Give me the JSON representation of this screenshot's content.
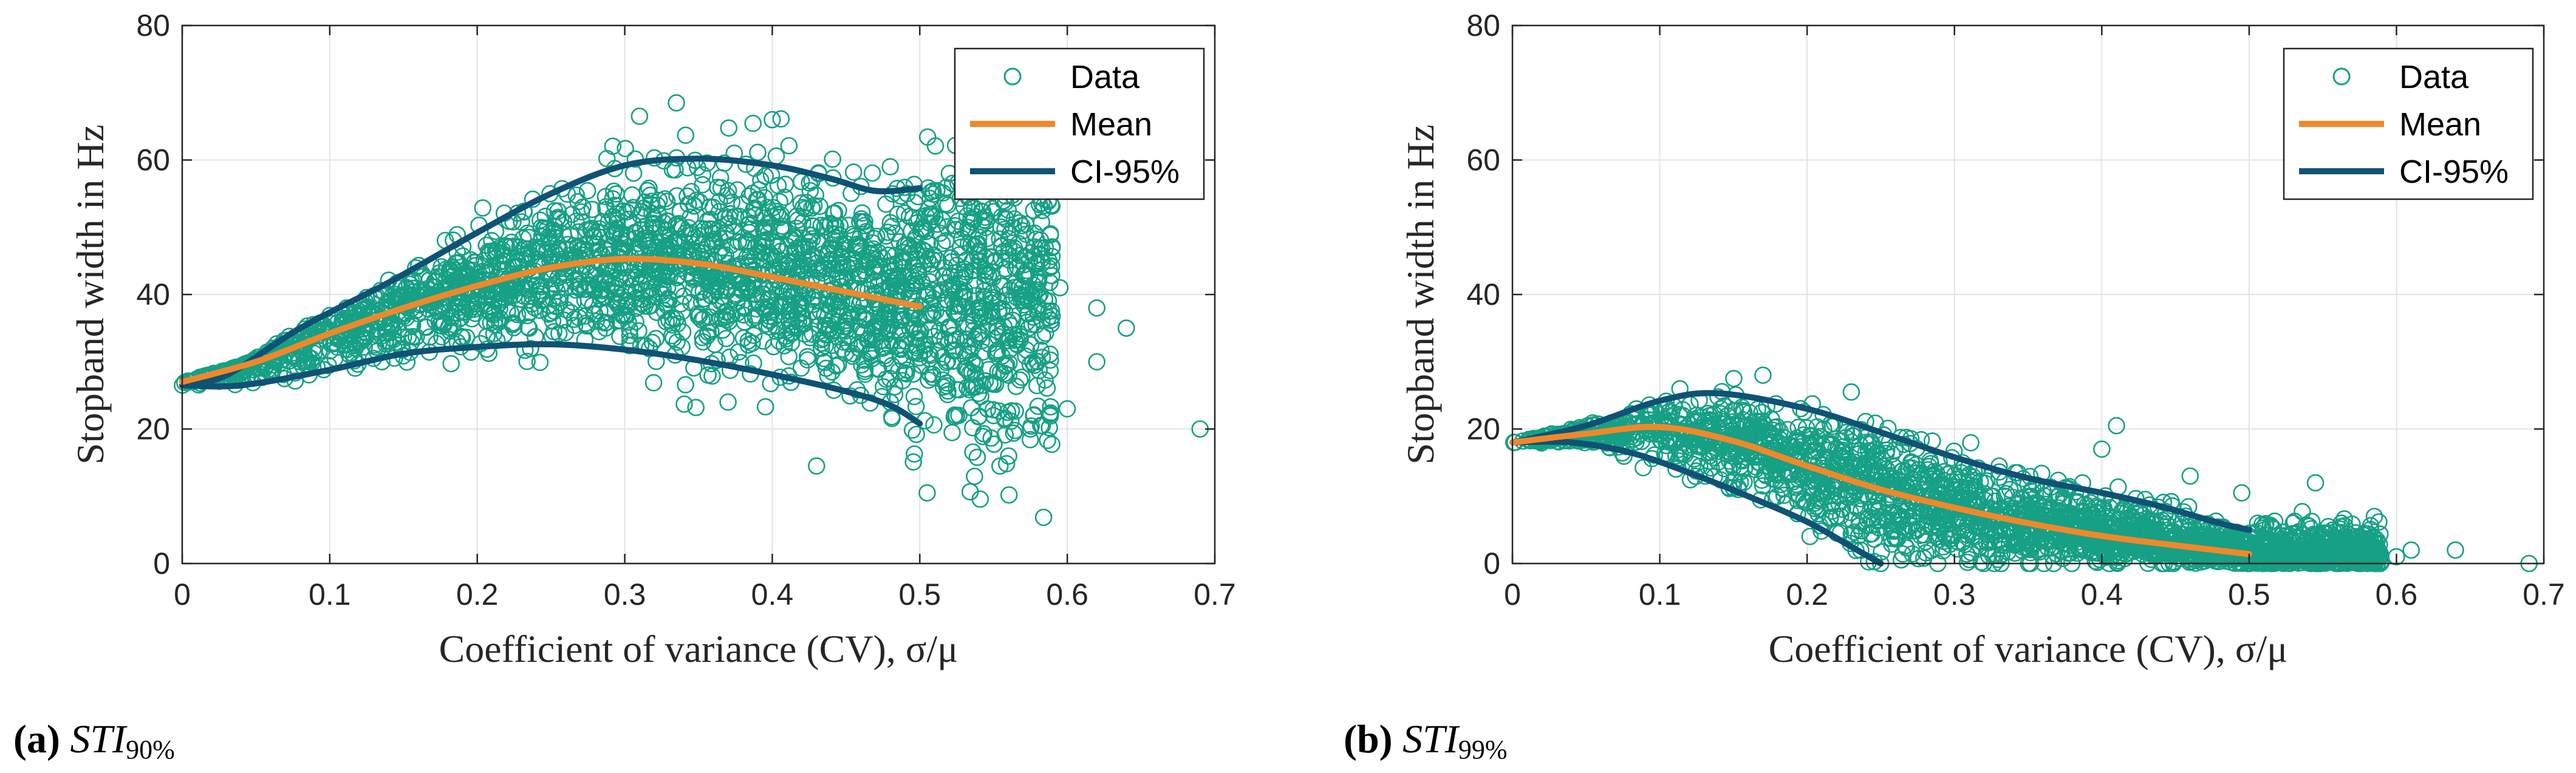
{
  "colors": {
    "data": "#16A085",
    "mean": "#F0882A",
    "ci": "#0F5275",
    "grid": "#e3e3e3",
    "axis": "#262626"
  },
  "chart_data": [
    {
      "id": "a",
      "type": "scatter",
      "caption_label": "(a)",
      "caption_base": "STI",
      "caption_sub": "90%",
      "xlabel": "Coefficient of variance (CV), σ/μ",
      "ylabel": "Stopband width in Hz",
      "xlim": [
        0,
        0.7
      ],
      "ylim": [
        0,
        80
      ],
      "xticks": [
        0,
        0.1,
        0.2,
        0.3,
        0.4,
        0.5,
        0.6,
        0.7
      ],
      "xtick_labels": [
        "0",
        "0.1",
        "0.2",
        "0.3",
        "0.4",
        "0.5",
        "0.6",
        "0.7"
      ],
      "yticks": [
        0,
        20,
        40,
        60,
        80
      ],
      "ytick_labels": [
        "0",
        "20",
        "40",
        "60",
        "80"
      ],
      "grid": true,
      "legend": {
        "position": "top-right",
        "entries": [
          "Data",
          "Mean",
          "CI-95%"
        ]
      },
      "series": [
        {
          "name": "Data",
          "kind": "scatter",
          "sample_count": 2600,
          "x_range": [
            0,
            0.7
          ],
          "mean_curve_ref": "Mean",
          "spread_envelope": "CI-95%",
          "seed": 11,
          "outliers": [
            [
              0.69,
              20
            ],
            [
              0.43,
              14.5
            ],
            [
              0.505,
              10.5
            ],
            [
              0.64,
              35
            ],
            [
              0.62,
              38
            ],
            [
              0.595,
              41
            ],
            [
              0.575,
              20
            ],
            [
              0.55,
              22
            ],
            [
              0.335,
              68.5
            ],
            [
              0.31,
              66.5
            ],
            [
              0.4,
              66
            ],
            [
              0.6,
              23
            ],
            [
              0.56,
              46
            ],
            [
              0.58,
              30
            ],
            [
              0.62,
              30
            ],
            [
              0.46,
              25
            ],
            [
              0.37,
              24
            ],
            [
              0.52,
              58
            ],
            [
              0.48,
              59
            ]
          ]
        },
        {
          "name": "Mean",
          "kind": "line",
          "points": [
            [
              0,
              27
            ],
            [
              0.05,
              30
            ],
            [
              0.1,
              34.2
            ],
            [
              0.15,
              38
            ],
            [
              0.2,
              41.3
            ],
            [
              0.25,
              44
            ],
            [
              0.3,
              45.3
            ],
            [
              0.35,
              44.6
            ],
            [
              0.4,
              42.6
            ],
            [
              0.45,
              40.4
            ],
            [
              0.5,
              38.2
            ]
          ]
        },
        {
          "name": "CI-95% upper",
          "legend_name": "CI-95%",
          "kind": "line",
          "points": [
            [
              0,
              26.5
            ],
            [
              0.03,
              28
            ],
            [
              0.08,
              35
            ],
            [
              0.14,
              41.8
            ],
            [
              0.2,
              49.2
            ],
            [
              0.25,
              55
            ],
            [
              0.3,
              59.2
            ],
            [
              0.35,
              60.2
            ],
            [
              0.4,
              59.2
            ],
            [
              0.44,
              57.2
            ],
            [
              0.47,
              55.4
            ],
            [
              0.5,
              55.8
            ]
          ]
        },
        {
          "name": "CI-95% lower",
          "legend_name": "CI-95%",
          "kind": "line",
          "points": [
            [
              0,
              26.5
            ],
            [
              0.04,
              26.5
            ],
            [
              0.1,
              28.8
            ],
            [
              0.15,
              31.2
            ],
            [
              0.2,
              32.2
            ],
            [
              0.25,
              32.6
            ],
            [
              0.3,
              31.8
            ],
            [
              0.35,
              30.2
            ],
            [
              0.4,
              28.1
            ],
            [
              0.45,
              25.6
            ],
            [
              0.48,
              23.5
            ],
            [
              0.5,
              20.8
            ]
          ]
        }
      ]
    },
    {
      "id": "b",
      "type": "scatter",
      "caption_label": "(b)",
      "caption_base": "STI",
      "caption_sub": "99%",
      "xlabel": "Coefficient of variance (CV), σ/μ",
      "ylabel": "Stopband width in Hz",
      "xlim": [
        0,
        0.7
      ],
      "ylim": [
        0,
        80
      ],
      "xticks": [
        0,
        0.1,
        0.2,
        0.3,
        0.4,
        0.5,
        0.6,
        0.7
      ],
      "xtick_labels": [
        "0",
        "0.1",
        "0.2",
        "0.3",
        "0.4",
        "0.5",
        "0.6",
        "0.7"
      ],
      "yticks": [
        0,
        20,
        40,
        60,
        80
      ],
      "ytick_labels": [
        "0",
        "20",
        "40",
        "60",
        "80"
      ],
      "grid": true,
      "legend": {
        "position": "top-right",
        "entries": [
          "Data",
          "Mean",
          "CI-95%"
        ]
      },
      "series": [
        {
          "name": "Data",
          "kind": "scatter",
          "sample_count": 2600,
          "x_range": [
            0,
            0.7
          ],
          "mean_curve_ref": "Mean",
          "spread_envelope": "CI-95%",
          "seed": 29,
          "outliers": [
            [
              0.69,
              0
            ],
            [
              0.64,
              2
            ],
            [
              0.61,
              2
            ],
            [
              0.585,
              7
            ],
            [
              0.545,
              12
            ],
            [
              0.495,
              10.5
            ],
            [
              0.41,
              20.5
            ],
            [
              0.23,
              25.5
            ],
            [
              0.17,
              28
            ],
            [
              0.02,
              18
            ],
            [
              0.6,
              1
            ],
            [
              0.575,
              3
            ],
            [
              0.55,
              4
            ],
            [
              0.53,
              6
            ],
            [
              0.46,
              13
            ],
            [
              0.4,
              17
            ],
            [
              0.2,
              9
            ],
            [
              0.22,
              7
            ]
          ]
        },
        {
          "name": "Mean",
          "kind": "line",
          "points": [
            [
              0,
              18
            ],
            [
              0.05,
              19.3
            ],
            [
              0.1,
              20.3
            ],
            [
              0.15,
              18.2
            ],
            [
              0.2,
              14.5
            ],
            [
              0.25,
              11
            ],
            [
              0.3,
              8.3
            ],
            [
              0.35,
              6
            ],
            [
              0.4,
              4.1
            ],
            [
              0.45,
              2.7
            ],
            [
              0.5,
              1.4
            ]
          ]
        },
        {
          "name": "CI-95% upper",
          "legend_name": "CI-95%",
          "kind": "line",
          "points": [
            [
              0,
              18
            ],
            [
              0.05,
              20.5
            ],
            [
              0.1,
              24.2
            ],
            [
              0.14,
              25.3
            ],
            [
              0.2,
              23
            ],
            [
              0.25,
              19.5
            ],
            [
              0.3,
              15.8
            ],
            [
              0.35,
              12.7
            ],
            [
              0.4,
              10.5
            ],
            [
              0.44,
              8.5
            ],
            [
              0.48,
              6
            ],
            [
              0.5,
              5
            ]
          ]
        },
        {
          "name": "CI-95% lower",
          "legend_name": "CI-95%",
          "kind": "line",
          "points": [
            [
              0,
              18
            ],
            [
              0.04,
              18
            ],
            [
              0.08,
              16.5
            ],
            [
              0.12,
              13.5
            ],
            [
              0.16,
              10
            ],
            [
              0.2,
              6.2
            ],
            [
              0.23,
              2.5
            ],
            [
              0.25,
              0
            ]
          ]
        }
      ]
    }
  ]
}
